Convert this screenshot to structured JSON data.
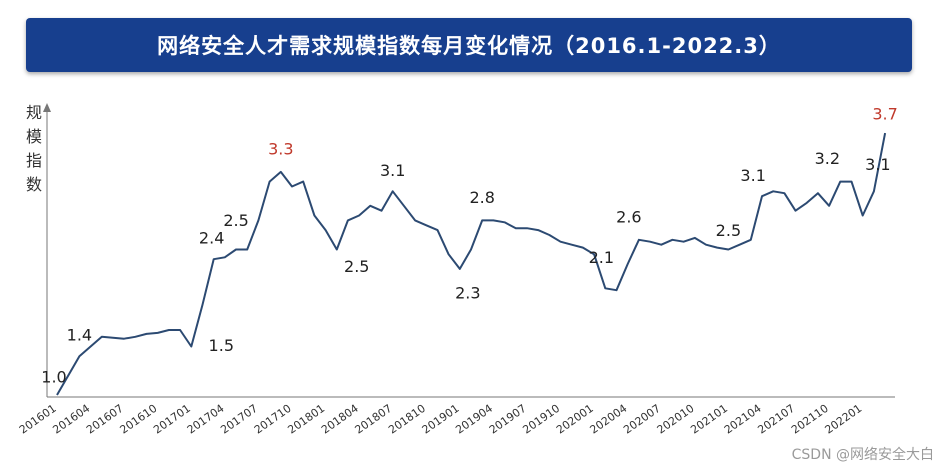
{
  "chart_data": {
    "type": "line",
    "title": "网络安全人才需求规模指数每月变化情况（2016.1-2022.3）",
    "y_label": "规模指数",
    "watermark": "CSDN @网络安全大白",
    "categories": [
      "201601",
      null,
      null,
      "201604",
      null,
      null,
      "201607",
      null,
      null,
      "201610",
      null,
      null,
      "201701",
      null,
      null,
      "201704",
      null,
      null,
      "201707",
      null,
      null,
      "201710",
      null,
      null,
      "201801",
      null,
      null,
      "201804",
      null,
      null,
      "201807",
      null,
      null,
      "201810",
      null,
      null,
      "201901",
      null,
      null,
      "201904",
      null,
      null,
      "201907",
      null,
      null,
      "201910",
      null,
      null,
      "202001",
      null,
      null,
      "202004",
      null,
      null,
      "202007",
      null,
      null,
      "202010",
      null,
      null,
      "202101",
      null,
      null,
      "202104",
      null,
      null,
      "202107",
      null,
      null,
      "202110",
      null,
      null,
      "202201",
      null,
      null
    ],
    "series": [
      {
        "name": null,
        "color": "#2c4a72",
        "values": [
          1.0,
          1.2,
          1.4,
          1.5,
          1.6,
          1.59,
          1.58,
          1.6,
          1.63,
          1.64,
          1.67,
          1.67,
          1.5,
          1.93,
          2.4,
          2.42,
          2.5,
          2.5,
          2.8,
          3.2,
          3.3,
          3.15,
          3.2,
          2.85,
          2.7,
          2.5,
          2.8,
          2.85,
          2.95,
          2.9,
          3.1,
          2.95,
          2.8,
          2.75,
          2.7,
          2.45,
          2.3,
          2.5,
          2.8,
          2.8,
          2.78,
          2.72,
          2.72,
          2.7,
          2.65,
          2.58,
          2.55,
          2.52,
          2.45,
          2.1,
          2.08,
          2.35,
          2.6,
          2.58,
          2.55,
          2.6,
          2.58,
          2.62,
          2.55,
          2.52,
          2.5,
          2.55,
          2.6,
          3.05,
          3.1,
          3.08,
          2.9,
          2.98,
          3.08,
          2.95,
          3.2,
          3.2,
          2.85,
          3.1,
          3.7
        ],
        "value_labels": [
          "1.0",
          null,
          "1.4",
          null,
          null,
          null,
          null,
          null,
          null,
          null,
          null,
          null,
          "1.5",
          null,
          "2.4",
          null,
          "2.5",
          null,
          null,
          null,
          "3.3",
          null,
          null,
          null,
          null,
          "2.5",
          null,
          null,
          null,
          null,
          "3.1",
          null,
          null,
          null,
          null,
          null,
          "2.3",
          null,
          "2.8",
          null,
          null,
          null,
          null,
          null,
          null,
          null,
          null,
          null,
          null,
          "2.1",
          null,
          null,
          "2.6",
          null,
          null,
          null,
          null,
          null,
          null,
          null,
          "2.5",
          null,
          null,
          null,
          "3.1",
          null,
          null,
          null,
          null,
          null,
          "3.2",
          null,
          null,
          "3.1",
          "3.7"
        ],
        "value_label_colors": [
          null,
          null,
          null,
          null,
          null,
          null,
          null,
          null,
          null,
          null,
          null,
          null,
          null,
          null,
          null,
          null,
          null,
          null,
          null,
          null,
          "#c0392b",
          null,
          null,
          null,
          null,
          null,
          null,
          null,
          null,
          null,
          null,
          null,
          null,
          null,
          null,
          null,
          null,
          null,
          null,
          null,
          null,
          null,
          null,
          null,
          null,
          null,
          null,
          null,
          null,
          null,
          null,
          null,
          null,
          null,
          null,
          null,
          null,
          null,
          null,
          null,
          null,
          null,
          null,
          null,
          null,
          null,
          null,
          null,
          null,
          null,
          null,
          null,
          null,
          null,
          "#c0392b"
        ]
      }
    ],
    "value_label_color": "#222",
    "ylim": [
      0.9,
      3.8
    ]
  }
}
